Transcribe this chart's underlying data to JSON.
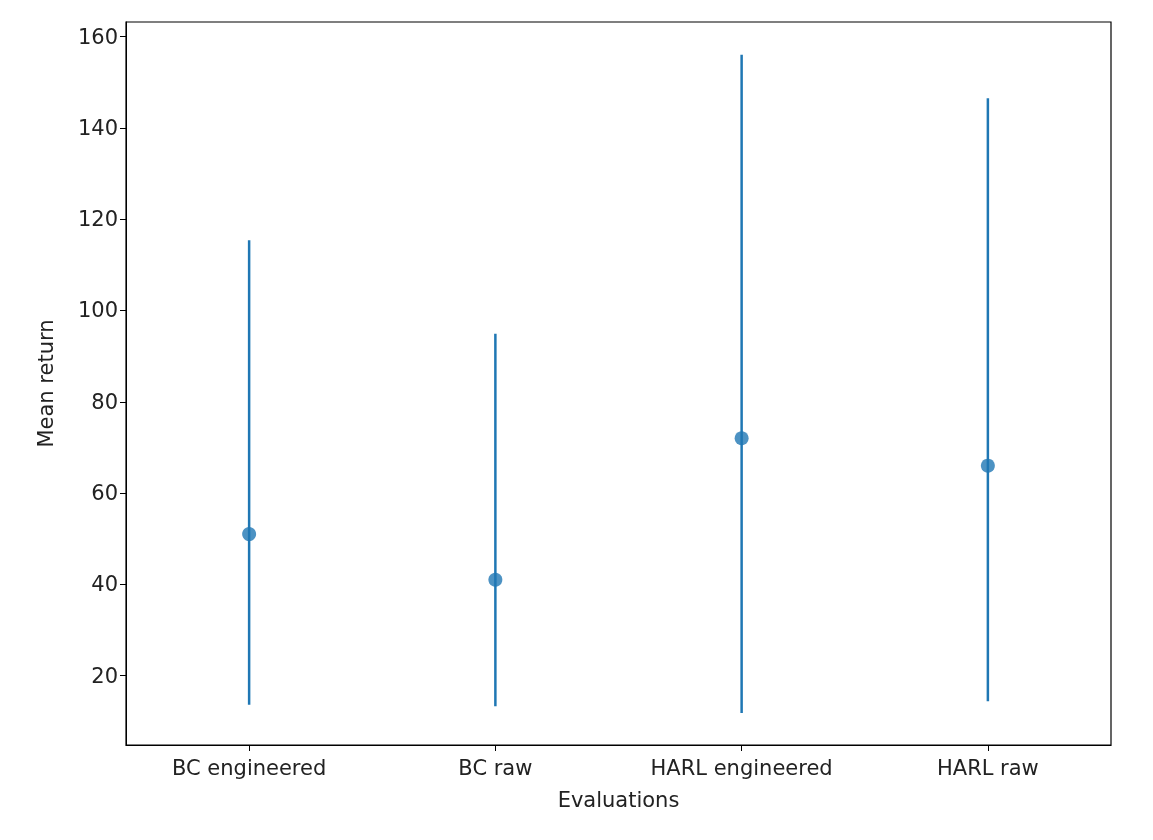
{
  "chart_data": {
    "type": "scatter",
    "xlabel": "Evaluations",
    "ylabel": "Mean return",
    "categories": [
      "BC engineered",
      "BC raw",
      "HARL engineered",
      "HARL raw"
    ],
    "series": [
      {
        "color": "#1f77b4",
        "values": [
          51,
          41,
          72,
          66
        ],
        "errors": [
          [
            13.6,
            115.4
          ],
          [
            13.3,
            94.9
          ],
          [
            11.8,
            156
          ],
          [
            14.4,
            146.5
          ]
        ]
      }
    ],
    "ylim": [
      4.8,
      163.2
    ],
    "yticks": [
      20,
      40,
      60,
      80,
      100,
      120,
      140,
      160
    ],
    "marker": "circle",
    "grid": false
  }
}
